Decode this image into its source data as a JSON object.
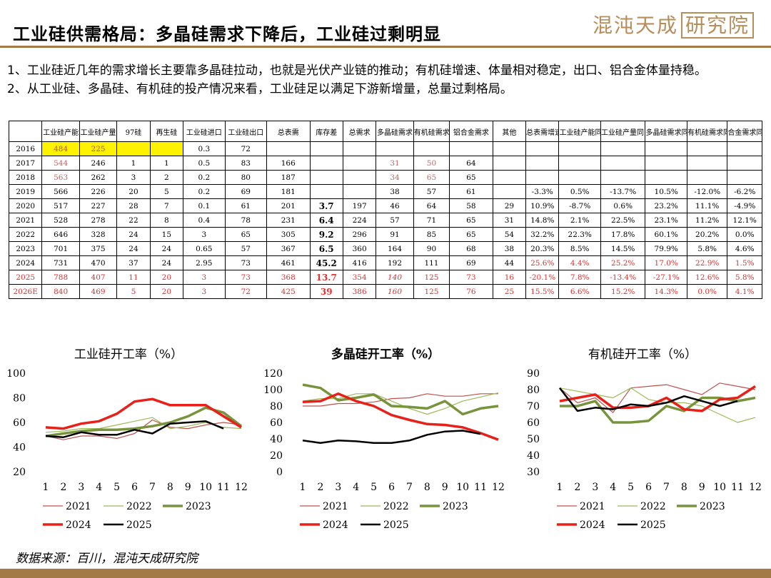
{
  "header": {
    "title": "工业硅供需格局：多晶硅需求下降后，工业硅过剩明显",
    "brand": "混沌天成",
    "brand_box": "研究院"
  },
  "paragraphs": [
    "1、工业硅近几年的需求增长主要靠多晶硅拉动，也就是光伏产业链的推动；有机硅增速、体量相对稳定，出口、铝合金体量持稳。",
    "2、从工业硅、多晶硅、有机硅的投产情况来看，工业硅足以满足下游新增量，总量过剩格局。"
  ],
  "table": {
    "headers": [
      "",
      "工业硅产能",
      "工业硅产量",
      "97硅",
      "再生硅",
      "工业硅进口",
      "工业硅出口",
      "总表需",
      "库存差",
      "总需求",
      "多晶硅需求",
      "有机硅需求",
      "铝合金需求",
      "其他",
      "总表需增速",
      "工业硅产能同比",
      "工业硅产量同比",
      "多晶硅需求同比",
      "有机硅需求同比",
      "合金需求同比"
    ],
    "rows": [
      [
        "2016",
        "484",
        "225",
        "",
        "",
        "0.3",
        "72",
        "",
        "",
        "",
        "",
        "",
        "",
        "",
        "",
        "",
        "",
        "",
        "",
        ""
      ],
      [
        "2017",
        "544",
        "246",
        "1",
        "1",
        "0.5",
        "83",
        "166",
        "",
        "",
        "31",
        "50",
        "64",
        "",
        "",
        "",
        "",
        "",
        "",
        ""
      ],
      [
        "2018",
        "563",
        "262",
        "3",
        "2",
        "0.2",
        "80",
        "187",
        "",
        "",
        "34",
        "65",
        "65",
        "",
        "",
        "",
        "",
        "",
        "",
        ""
      ],
      [
        "2019",
        "566",
        "226",
        "20",
        "5",
        "0.2",
        "69",
        "181",
        "",
        "",
        "38",
        "57",
        "61",
        "",
        "-3.3%",
        "0.5%",
        "-13.7%",
        "10.5%",
        "-12.0%",
        "-6.2%"
      ],
      [
        "2020",
        "517",
        "227",
        "28",
        "7",
        "0.1",
        "61",
        "201",
        "3.7",
        "197",
        "46",
        "64",
        "58",
        "29",
        "10.9%",
        "-8.7%",
        "0.6%",
        "23.2%",
        "11.1%",
        "-4.9%"
      ],
      [
        "2021",
        "528",
        "278",
        "22",
        "8",
        "0.4",
        "78",
        "231",
        "6.4",
        "224",
        "57",
        "71",
        "65",
        "31",
        "14.8%",
        "2.1%",
        "22.5%",
        "23.1%",
        "11.2%",
        "12.1%"
      ],
      [
        "2022",
        "646",
        "328",
        "24",
        "15",
        "3",
        "65",
        "305",
        "9.2",
        "296",
        "91",
        "85",
        "65",
        "54",
        "32.2%",
        "22.3%",
        "17.8%",
        "60.1%",
        "20.2%",
        "0.0%"
      ],
      [
        "2023",
        "701",
        "375",
        "24",
        "24",
        "0.65",
        "57",
        "367",
        "6.5",
        "360",
        "164",
        "90",
        "68",
        "38",
        "20.3%",
        "8.5%",
        "14.5%",
        "79.9%",
        "5.8%",
        "4.6%"
      ],
      [
        "2024",
        "731",
        "470",
        "37",
        "24",
        "2.95",
        "73",
        "461",
        "45.2",
        "416",
        "192",
        "111",
        "69",
        "44",
        "25.6%",
        "4.4%",
        "25.2%",
        "17.0%",
        "22.9%",
        "1.5%"
      ],
      [
        "2025",
        "788",
        "407",
        "11",
        "20",
        "3",
        "73",
        "368",
        "13.7",
        "354",
        "140",
        "125",
        "73",
        "16",
        "-20.1%",
        "7.8%",
        "-13.4%",
        "-27.1%",
        "12.6%",
        "5.8%"
      ],
      [
        "2026E",
        "840",
        "469",
        "5",
        "20",
        "3",
        "72",
        "425",
        "39",
        "386",
        "160",
        "125",
        "76",
        "25",
        "15.5%",
        "6.6%",
        "15.2%",
        "14.3%",
        "0.0%",
        "4.1%"
      ]
    ]
  },
  "colors": {
    "s2021": "#c0504d",
    "s2022": "#9bbb59",
    "s2023": "#77933c",
    "s2024": "#e8201a",
    "s2025": "#000000",
    "brand": "#a37a45"
  },
  "chart_data": [
    {
      "type": "line",
      "title": "工业硅开工率（%）",
      "x": [
        1,
        2,
        3,
        4,
        5,
        6,
        7,
        8,
        9,
        10,
        11,
        12
      ],
      "ylim": [
        20,
        100
      ],
      "yticks": [
        20,
        40,
        60,
        80,
        100
      ],
      "series": [
        {
          "name": "2021",
          "values": [
            49,
            46,
            49,
            49,
            47,
            51,
            62,
            56,
            55,
            58,
            60,
            58
          ]
        },
        {
          "name": "2022",
          "values": [
            52,
            53,
            55,
            55,
            58,
            61,
            64,
            55,
            57,
            60,
            56,
            55
          ]
        },
        {
          "name": "2023",
          "values": [
            49,
            51,
            53,
            54,
            54,
            55,
            57,
            60,
            65,
            72,
            68,
            57
          ]
        },
        {
          "name": "2024",
          "values": [
            56,
            55,
            59,
            61,
            67,
            77,
            79,
            74,
            74,
            74,
            65,
            56
          ]
        },
        {
          "name": "2025",
          "values": [
            49,
            48,
            52,
            50,
            50,
            54,
            51,
            59,
            60,
            61,
            55,
            null
          ]
        }
      ]
    },
    {
      "type": "line",
      "title": "多晶硅开工率（%）",
      "x": [
        1,
        2,
        3,
        4,
        5,
        6,
        7,
        8,
        9,
        10,
        11,
        12
      ],
      "ylim": [
        0,
        120
      ],
      "yticks": [
        0,
        20,
        40,
        60,
        80,
        100,
        120
      ],
      "series": [
        {
          "name": "2021",
          "values": [
            80,
            80,
            83,
            83,
            85,
            89,
            90,
            95,
            92,
            92,
            95,
            95
          ]
        },
        {
          "name": "2022",
          "values": [
            86,
            89,
            89,
            95,
            95,
            86,
            77,
            70,
            77,
            86,
            91,
            96
          ]
        },
        {
          "name": "2023",
          "values": [
            106,
            102,
            87,
            90,
            94,
            80,
            79,
            77,
            86,
            70,
            77,
            80
          ]
        },
        {
          "name": "2024",
          "values": [
            85,
            86,
            95,
            86,
            80,
            69,
            63,
            58,
            57,
            54,
            47,
            39
          ]
        },
        {
          "name": "2025",
          "values": [
            38,
            35,
            38,
            37,
            35,
            35,
            38,
            45,
            49,
            50,
            46,
            null
          ]
        }
      ]
    },
    {
      "type": "line",
      "title": "有机硅开工率（%）",
      "x": [
        1,
        2,
        3,
        4,
        5,
        6,
        7,
        8,
        9,
        10,
        11,
        12
      ],
      "ylim": [
        30,
        90
      ],
      "yticks": [
        30,
        40,
        50,
        60,
        70,
        80,
        90
      ],
      "series": [
        {
          "name": "2021",
          "values": [
            81,
            72,
            75,
            66,
            81,
            82,
            83,
            80,
            77,
            84,
            82,
            80
          ]
        },
        {
          "name": "2022",
          "values": [
            81,
            79,
            77,
            75,
            81,
            74,
            72,
            72,
            70,
            65,
            60,
            63
          ]
        },
        {
          "name": "2023",
          "values": [
            70,
            70,
            73,
            60,
            60,
            61,
            70,
            67,
            75,
            75,
            73,
            75
          ]
        },
        {
          "name": "2024",
          "values": [
            73,
            75,
            77,
            69,
            69,
            70,
            75,
            68,
            67,
            74,
            75,
            82
          ]
        },
        {
          "name": "2025",
          "values": [
            81,
            67,
            69,
            68,
            71,
            70,
            72,
            76,
            73,
            70,
            73,
            null
          ]
        }
      ]
    }
  ],
  "source": "数据来源：百川，混沌天成研究院"
}
